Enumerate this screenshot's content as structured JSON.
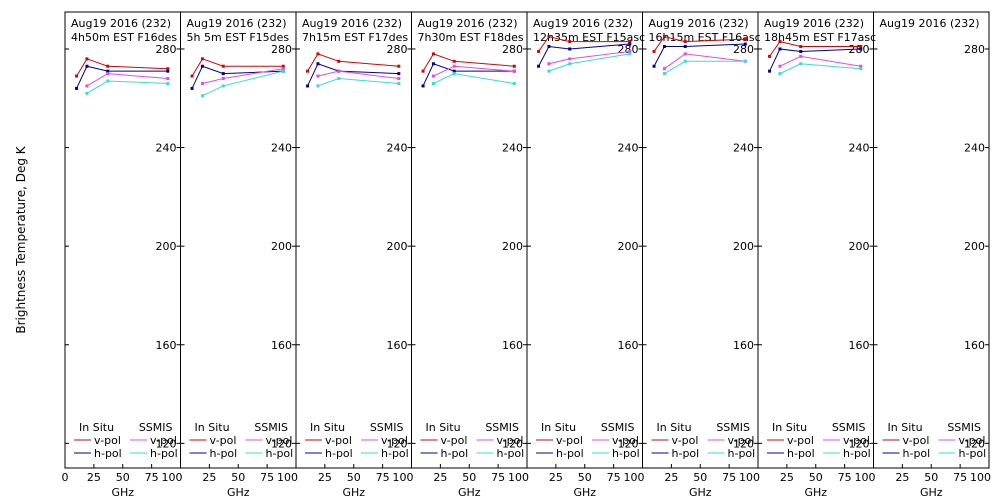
{
  "figure": {
    "ylabel": "Brightness Temperature, Deg K",
    "xlabel": "GHz"
  },
  "legend": {
    "insitu_title": "In Situ",
    "ssmis_title": "SSMIS",
    "vpol": "v-pol",
    "hpol": "h-pol"
  },
  "colors": {
    "insitu_v": "#dd0000",
    "insitu_h": "#000099",
    "ssmis_v": "#ee44ee",
    "ssmis_h": "#33dddd"
  },
  "chart_data": {
    "type": "line",
    "xlim": [
      0,
      100
    ],
    "ylim": [
      110,
      295
    ],
    "xticks": [
      0,
      25,
      50,
      75,
      100
    ],
    "xtick_labels_first": [
      "0",
      "25",
      "50",
      "75",
      "100"
    ],
    "xtick_labels_other": [
      "25",
      "50",
      "75",
      "100"
    ],
    "yticks": [
      120,
      160,
      200,
      240,
      280
    ],
    "panels": [
      {
        "title1": "Aug19 2016 (232)",
        "title2": "4h50m  EST  F16des",
        "series": [
          {
            "name": "In Situ v-pol",
            "x": [
              10,
              19,
              37,
              89
            ],
            "y": [
              269,
              276,
              273,
              272
            ]
          },
          {
            "name": "In Situ h-pol",
            "x": [
              10,
              19,
              37,
              89
            ],
            "y": [
              264,
              273,
              271,
              271
            ]
          },
          {
            "name": "SSMIS v-pol",
            "x": [
              19,
              37,
              89
            ],
            "y": [
              265,
              270,
              268
            ]
          },
          {
            "name": "SSMIS h-pol",
            "x": [
              19,
              37,
              89
            ],
            "y": [
              262,
              267,
              266
            ]
          }
        ]
      },
      {
        "title1": "Aug19 2016 (232)",
        "title2": "5h 5m  EST  F15des",
        "series": [
          {
            "name": "In Situ v-pol",
            "x": [
              10,
              19,
              37,
              89
            ],
            "y": [
              269,
              276,
              273,
              273
            ]
          },
          {
            "name": "In Situ h-pol",
            "x": [
              10,
              19,
              37,
              89
            ],
            "y": [
              264,
              273,
              270,
              271
            ]
          },
          {
            "name": "SSMIS v-pol",
            "x": [
              19,
              37,
              89
            ],
            "y": [
              266,
              268,
              272
            ]
          },
          {
            "name": "SSMIS h-pol",
            "x": [
              19,
              37,
              89
            ],
            "y": [
              261,
              265,
              271
            ]
          }
        ]
      },
      {
        "title1": "Aug19 2016 (232)",
        "title2": "7h15m  EST  F17des",
        "series": [
          {
            "name": "In Situ v-pol",
            "x": [
              10,
              19,
              37,
              89
            ],
            "y": [
              271,
              278,
              275,
              273
            ]
          },
          {
            "name": "In Situ h-pol",
            "x": [
              10,
              19,
              37,
              89
            ],
            "y": [
              265,
              274,
              271,
              270
            ]
          },
          {
            "name": "SSMIS v-pol",
            "x": [
              19,
              37,
              89
            ],
            "y": [
              269,
              271,
              268
            ]
          },
          {
            "name": "SSMIS h-pol",
            "x": [
              19,
              37,
              89
            ],
            "y": [
              265,
              268,
              266
            ]
          }
        ]
      },
      {
        "title1": "Aug19 2016 (232)",
        "title2": "7h30m  EST  F18des",
        "series": [
          {
            "name": "In Situ v-pol",
            "x": [
              10,
              19,
              37,
              89
            ],
            "y": [
              271,
              278,
              275,
              273
            ]
          },
          {
            "name": "In Situ h-pol",
            "x": [
              10,
              19,
              37,
              89
            ],
            "y": [
              265,
              274,
              271,
              271
            ]
          },
          {
            "name": "SSMIS v-pol",
            "x": [
              19,
              37,
              89
            ],
            "y": [
              269,
              273,
              271
            ]
          },
          {
            "name": "SSMIS h-pol",
            "x": [
              19,
              37,
              89
            ],
            "y": [
              266,
              270,
              266
            ]
          }
        ]
      },
      {
        "title1": "Aug19 2016 (232)",
        "title2": "12h35m  EST  F15asc",
        "series": [
          {
            "name": "In Situ v-pol",
            "x": [
              10,
              19,
              37,
              89
            ],
            "y": [
              279,
              285,
              283,
              283
            ]
          },
          {
            "name": "In Situ h-pol",
            "x": [
              10,
              19,
              37,
              89
            ],
            "y": [
              273,
              281,
              280,
              282
            ]
          },
          {
            "name": "SSMIS v-pol",
            "x": [
              19,
              37,
              89
            ],
            "y": [
              274,
              276,
              279
            ]
          },
          {
            "name": "SSMIS h-pol",
            "x": [
              19,
              37,
              89
            ],
            "y": [
              271,
              274,
              278
            ]
          }
        ]
      },
      {
        "title1": "Aug19 2016 (232)",
        "title2": "16h15m  EST  F16asc",
        "series": [
          {
            "name": "In Situ v-pol",
            "x": [
              10,
              19,
              37,
              89
            ],
            "y": [
              279,
              285,
              283,
              284
            ]
          },
          {
            "name": "In Situ h-pol",
            "x": [
              10,
              19,
              37,
              89
            ],
            "y": [
              273,
              281,
              281,
              282
            ]
          },
          {
            "name": "SSMIS v-pol",
            "x": [
              19,
              37,
              89
            ],
            "y": [
              272,
              278,
              275
            ]
          },
          {
            "name": "SSMIS h-pol",
            "x": [
              19,
              37,
              89
            ],
            "y": [
              270,
              275,
              275
            ]
          }
        ]
      },
      {
        "title1": "Aug19 2016 (232)",
        "title2": "18h45m  EST  F17asc",
        "series": [
          {
            "name": "In Situ v-pol",
            "x": [
              10,
              19,
              37,
              89
            ],
            "y": [
              277,
              283,
              281,
              281
            ]
          },
          {
            "name": "In Situ h-pol",
            "x": [
              10,
              19,
              37,
              89
            ],
            "y": [
              271,
              280,
              279,
              280
            ]
          },
          {
            "name": "SSMIS v-pol",
            "x": [
              19,
              37,
              89
            ],
            "y": [
              273,
              277,
              273
            ]
          },
          {
            "name": "SSMIS h-pol",
            "x": [
              19,
              37,
              89
            ],
            "y": [
              270,
              274,
              272
            ]
          }
        ]
      },
      {
        "title1": "Aug19 2016 (232)",
        "title2": "",
        "series": []
      }
    ]
  }
}
